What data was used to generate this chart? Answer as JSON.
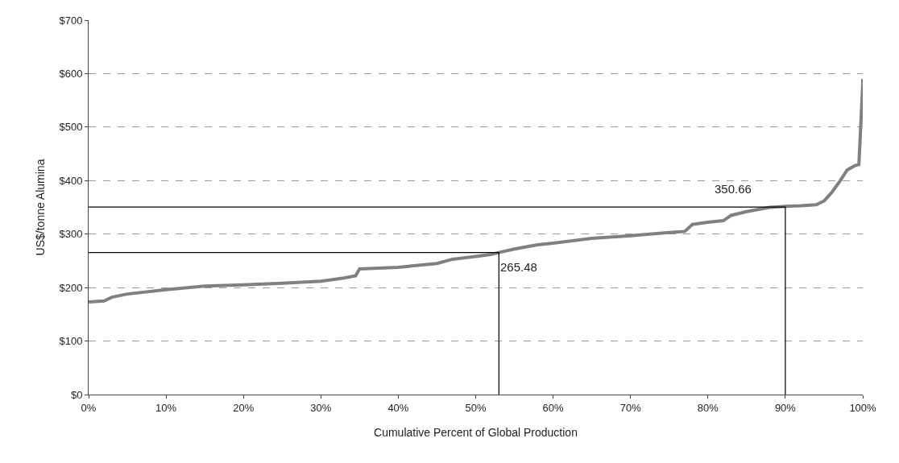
{
  "chart_data": {
    "type": "line",
    "xlabel": "Cumulative Percent of Global Production",
    "ylabel": "US$/tonne Alumina",
    "xlim": [
      0,
      100
    ],
    "xticks": [
      {
        "value": 0,
        "label": "0%"
      },
      {
        "value": 10,
        "label": "10%"
      },
      {
        "value": 20,
        "label": "20%"
      },
      {
        "value": 30,
        "label": "30%"
      },
      {
        "value": 40,
        "label": "40%"
      },
      {
        "value": 50,
        "label": "50%"
      },
      {
        "value": 60,
        "label": "60%"
      },
      {
        "value": 70,
        "label": "70%"
      },
      {
        "value": 80,
        "label": "80%"
      },
      {
        "value": 90,
        "label": "90%"
      },
      {
        "value": 100,
        "label": "100%"
      }
    ],
    "ylim": [
      0,
      700
    ],
    "yticks": [
      {
        "value": 0,
        "label": "$0"
      },
      {
        "value": 100,
        "label": "$100"
      },
      {
        "value": 200,
        "label": "$200"
      },
      {
        "value": 300,
        "label": "$300"
      },
      {
        "value": 400,
        "label": "$400"
      },
      {
        "value": 500,
        "label": "$500"
      },
      {
        "value": 600,
        "label": "$600"
      },
      {
        "value": 700,
        "label": "$700"
      }
    ],
    "grid": "y",
    "marker": "none",
    "line_style": "solid",
    "series": [
      {
        "color": "#808080",
        "x": [
          0,
          2,
          3,
          5,
          10,
          15,
          20,
          25,
          30,
          33,
          34.5,
          35,
          40,
          45,
          47,
          50,
          52,
          53,
          55,
          58,
          60,
          65,
          70,
          75,
          77,
          78,
          80,
          82,
          83,
          85,
          88,
          90,
          92,
          94,
          95,
          96,
          97,
          98,
          99,
          99.5,
          100,
          100
        ],
        "values": [
          173,
          175,
          182,
          188,
          196,
          203,
          205,
          208,
          212,
          218,
          222,
          235,
          238,
          245,
          253,
          258,
          262,
          265.48,
          272,
          280,
          283,
          292,
          297,
          303,
          305,
          318,
          322,
          325,
          335,
          342,
          350,
          352,
          353,
          355,
          362,
          378,
          398,
          420,
          428,
          430,
          580,
          590
        ]
      },
      {
        "color": "#000000",
        "x": [
          0,
          53,
          53
        ],
        "values": [
          265.48,
          265.48,
          0
        ]
      },
      {
        "color": "#000000",
        "x": [
          0,
          90,
          90
        ],
        "values": [
          350.66,
          350.66,
          0
        ]
      }
    ],
    "annotations": [
      {
        "text": "265.48",
        "x": 53,
        "y": 265.48
      },
      {
        "text": "350.66",
        "x": 90,
        "y": 350.66
      }
    ]
  }
}
